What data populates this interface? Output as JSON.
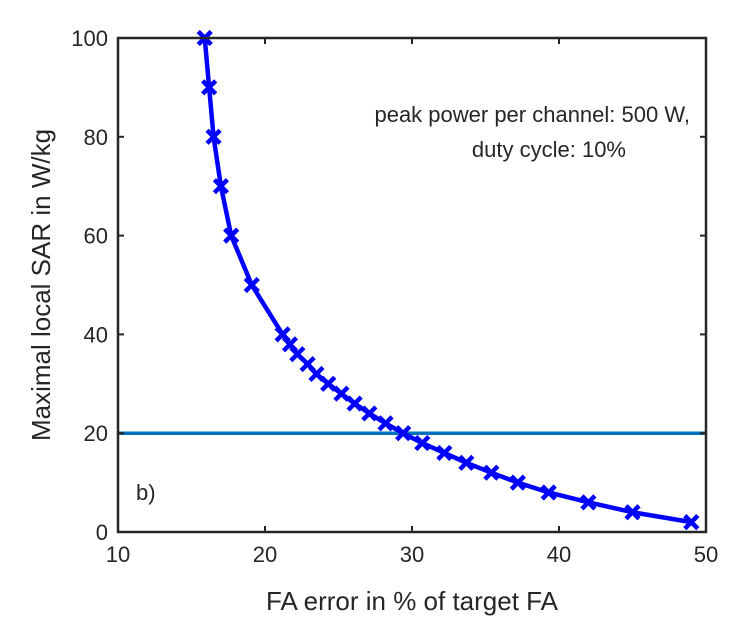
{
  "chart_data": {
    "type": "line",
    "title": "",
    "xlabel": "FA error in % of target FA",
    "ylabel": "Maximal local SAR in W/kg",
    "xlim": [
      10,
      50
    ],
    "ylim": [
      0,
      100
    ],
    "xticks": [
      10,
      20,
      30,
      40,
      50
    ],
    "yticks": [
      0,
      20,
      40,
      60,
      80,
      100
    ],
    "grid": false,
    "series": [
      {
        "name": "max local SAR vs FA error",
        "color": "#0000ff",
        "marker": "x",
        "x": [
          15.9,
          16.2,
          16.5,
          17.0,
          17.7,
          19.1,
          21.2,
          21.7,
          22.2,
          22.9,
          23.5,
          24.3,
          25.2,
          26.1,
          27.1,
          28.2,
          29.4,
          30.7,
          32.2,
          33.7,
          35.4,
          37.2,
          39.3,
          42.0,
          45.0,
          49.0
        ],
        "y": [
          100,
          90,
          80,
          70,
          60,
          50,
          40,
          38,
          36,
          34,
          32,
          30,
          28,
          26,
          24,
          22,
          20,
          18,
          16,
          14,
          12,
          10,
          8,
          6,
          4,
          2
        ]
      }
    ],
    "reference_line": {
      "y": 20,
      "color": "#0072bd"
    },
    "annotations": [
      "peak power per channel: 500 W,",
      "duty cycle: 10%",
      "b)"
    ]
  }
}
